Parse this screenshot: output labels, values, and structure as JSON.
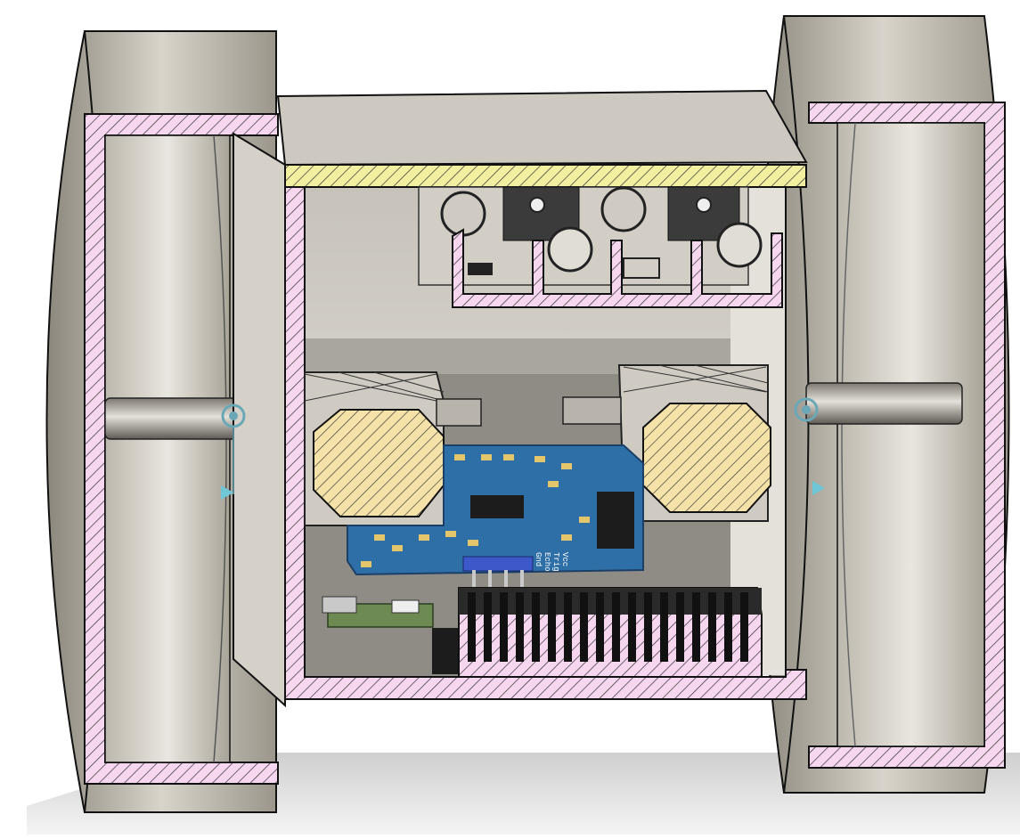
{
  "scene": {
    "description_visible_text": "",
    "colors": {
      "background": "#ffffff",
      "shell": "#d9d5cd",
      "shell_dark": "#a8a49b",
      "section_pink": "#f7d6ef",
      "section_yellow": "#f2f0a0",
      "section_tan": "#f5e2a8",
      "pcb_blue": "#2f6fa8",
      "chip_black": "#1c1c1c",
      "hatch": "#222222"
    },
    "pcb": {
      "pin_labels": [
        "Gnd",
        "Echo",
        "Trig",
        "Vcc"
      ]
    },
    "icons": [
      "axis-joint-icon",
      "axis-joint-icon"
    ]
  }
}
